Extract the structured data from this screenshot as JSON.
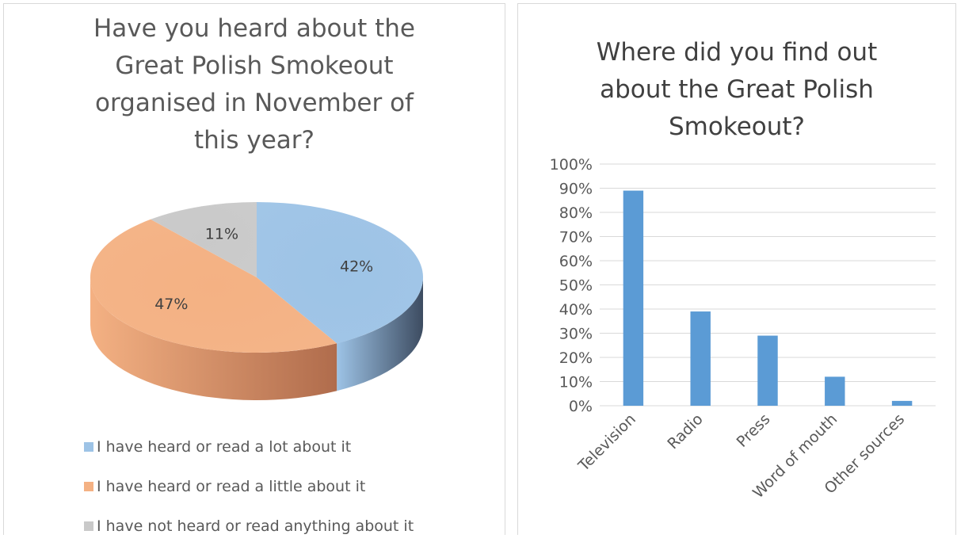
{
  "charts": [
    {
      "title_lines": [
        "Have you heard about the",
        "Great Polish Smokeout",
        "organised in November of",
        "this year?"
      ]
    },
    {
      "title_lines": [
        "Where did you find out",
        "about the Great Polish",
        "Smokeout?"
      ]
    }
  ],
  "chart_data": [
    {
      "type": "pie",
      "title": "Have you heard about the Great Polish Smokeout organised in November of this year?",
      "style": "3d",
      "legend_position": "bottom",
      "slices": [
        {
          "label": "I have heard or read a lot about it",
          "value": 42,
          "display": "42%",
          "color": "#9dc3e6",
          "side_color": "#3d4c61"
        },
        {
          "label": "I have heard or read a little about it",
          "value": 47,
          "display": "47%",
          "color": "#f4b183",
          "side_color": "#b06c4c"
        },
        {
          "label": "I have not heard or read anything about it",
          "value": 11,
          "display": "11%",
          "color": "#c9c9c9",
          "side_color": "#8c8c8c"
        }
      ]
    },
    {
      "type": "bar",
      "title": "Where did you find out about the Great Polish Smokeout?",
      "categories": [
        "Television",
        "Radio",
        "Press",
        "Word of mouth",
        "Other sources"
      ],
      "values": [
        89,
        39,
        29,
        12,
        2
      ],
      "ylim": [
        0,
        100
      ],
      "ytick_step": 10,
      "ytick_labels": [
        "0%",
        "10%",
        "20%",
        "30%",
        "40%",
        "50%",
        "60%",
        "70%",
        "80%",
        "90%",
        "100%"
      ],
      "grid": true,
      "legend": false,
      "bar_color": "#5b9bd5",
      "xlabel": "",
      "ylabel": ""
    }
  ]
}
